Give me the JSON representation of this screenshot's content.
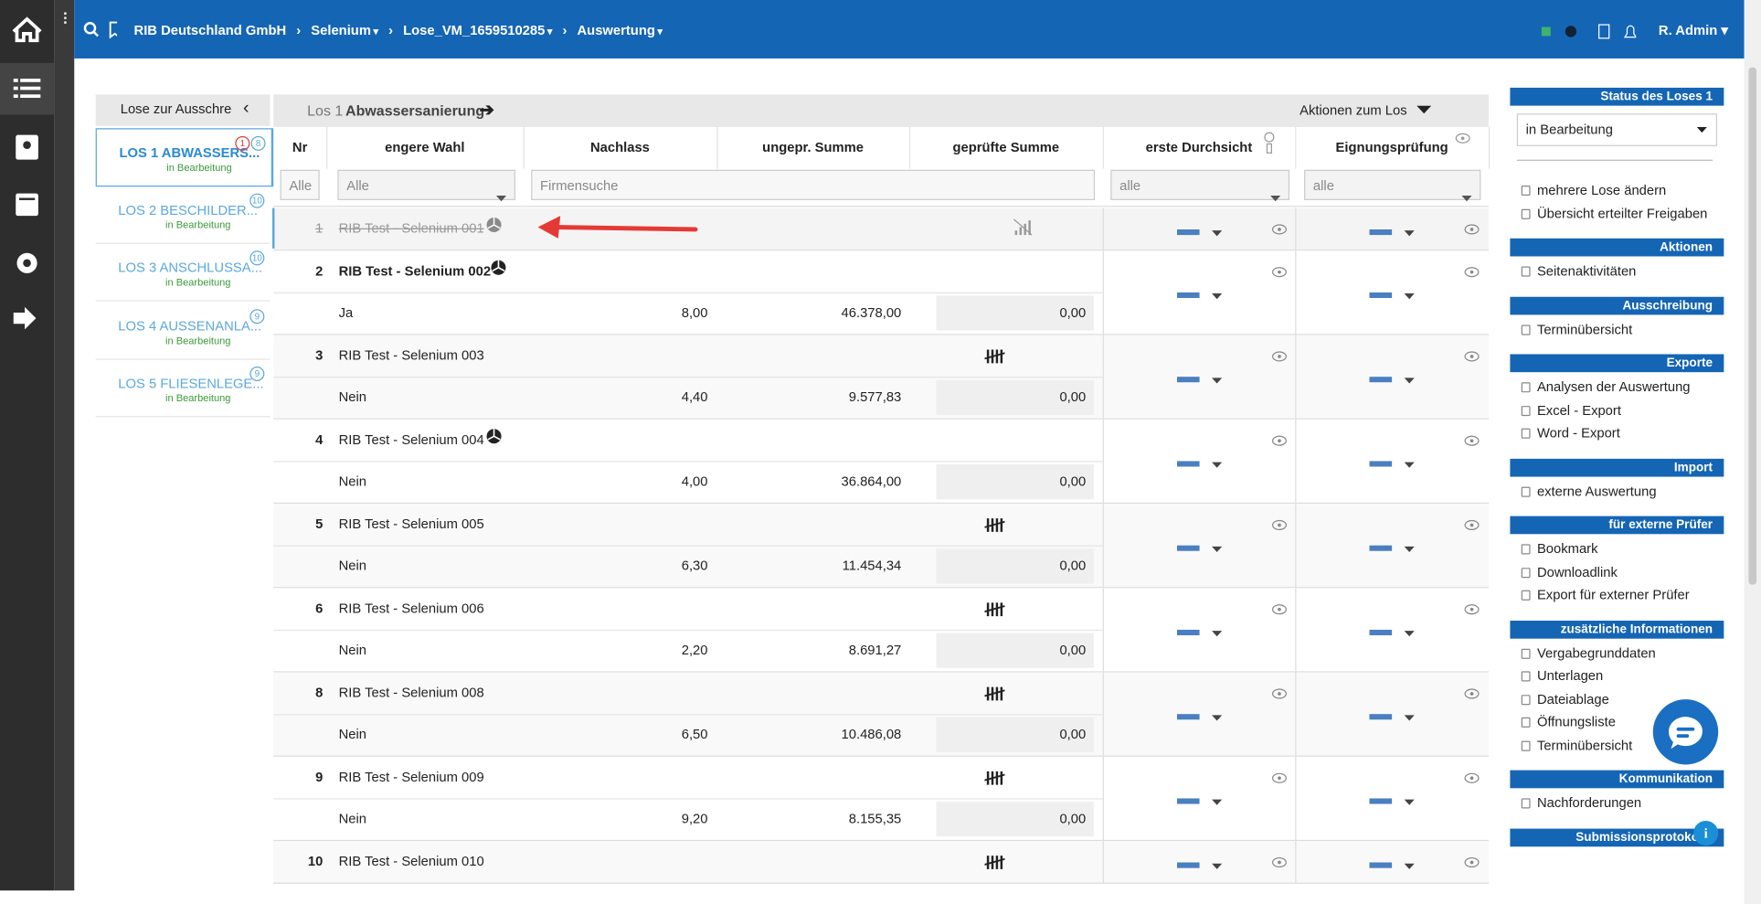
{
  "header": {
    "breadcrumb": [
      "RIB Deutschland GmbH",
      "Selenium",
      "Lose_VM_1659510285",
      "Auswertung"
    ],
    "user": "R. Admin"
  },
  "lots_panel": {
    "title": "Lose zur Ausschre",
    "lots": [
      {
        "name": "LOS 1 ABWASSERS...",
        "status": "in Bearbeitung",
        "badges": [
          "1",
          "8"
        ]
      },
      {
        "name": "LOS 2 BESCHILDER...",
        "status": "in Bearbeitung",
        "badges": [
          "10"
        ]
      },
      {
        "name": "LOS 3 ANSCHLUSSA...",
        "status": "in Bearbeitung",
        "badges": [
          "10"
        ]
      },
      {
        "name": "LOS 4 AUSSENANLA...",
        "status": "in Bearbeitung",
        "badges": [
          "9"
        ]
      },
      {
        "name": "LOS 5 FLIESENLEGE...",
        "status": "in Bearbeitung",
        "badges": [
          "9"
        ]
      }
    ]
  },
  "lot_header": {
    "prefix": "Los 1",
    "name": "Abwassersanierung",
    "actions": "Aktionen zum Los"
  },
  "table": {
    "columns": [
      "Nr",
      "engere Wahl",
      "Nachlass",
      "ungepr. Summe",
      "geprüfte Summe",
      "erste Durchsicht",
      "Eignungsprüfung"
    ],
    "filters": [
      "Alle",
      "Alle",
      "Firmensuche",
      "alle",
      "alle"
    ],
    "rows": [
      {
        "nr": "1",
        "name": "RIB Test - Selenium 001",
        "struck": true,
        "marker": "pie"
      },
      {
        "nr": "2",
        "name": "RIB Test - Selenium 002",
        "bold": true,
        "marker": "pie",
        "choice": "Ja",
        "discount": "8,00",
        "unchecked": "46.378,00",
        "checked": "0,00"
      },
      {
        "nr": "3",
        "name": "RIB Test - Selenium 003",
        "marker": "tally",
        "choice": "Nein",
        "discount": "4,40",
        "unchecked": "9.577,83",
        "checked": "0,00"
      },
      {
        "nr": "4",
        "name": "RIB Test - Selenium 004",
        "marker": "pie",
        "choice": "Nein",
        "discount": "4,00",
        "unchecked": "36.864,00",
        "checked": "0,00"
      },
      {
        "nr": "5",
        "name": "RIB Test - Selenium 005",
        "marker": "tally",
        "choice": "Nein",
        "discount": "6,30",
        "unchecked": "11.454,34",
        "checked": "0,00"
      },
      {
        "nr": "6",
        "name": "RIB Test - Selenium 006",
        "marker": "tally",
        "choice": "Nein",
        "discount": "2,20",
        "unchecked": "8.691,27",
        "checked": "0,00"
      },
      {
        "nr": "8",
        "name": "RIB Test - Selenium 008",
        "marker": "tally",
        "choice": "Nein",
        "discount": "6,50",
        "unchecked": "10.486,08",
        "checked": "0,00"
      },
      {
        "nr": "9",
        "name": "RIB Test - Selenium 009",
        "marker": "tally",
        "choice": "Nein",
        "discount": "9,20",
        "unchecked": "8.155,35",
        "checked": "0,00"
      },
      {
        "nr": "10",
        "name": "RIB Test - Selenium 010",
        "marker": "tally"
      }
    ]
  },
  "side": {
    "status_title": "Status des Loses 1",
    "status": "in Bearbeitung",
    "status_links": [
      "mehrere Lose ändern",
      "Übersicht erteilter Freigaben"
    ],
    "sections": [
      {
        "title": "Aktionen",
        "links": [
          "Seitenaktivitäten"
        ]
      },
      {
        "title": "Ausschreibung",
        "links": [
          "Terminübersicht"
        ]
      },
      {
        "title": "Exporte",
        "links": [
          "Analysen der Auswertung",
          "Excel - Export",
          "Word - Export"
        ]
      },
      {
        "title": "Import",
        "links": [
          "externe Auswertung"
        ]
      },
      {
        "title": "für externe Prüfer",
        "links": [
          "Bookmark",
          "Downloadlink",
          "Export für externer Prüfer"
        ]
      },
      {
        "title": "zusätzliche Informationen",
        "links": [
          "Vergabegrunddaten",
          "Unterlagen",
          "Dateiablage",
          "Öffnungsliste",
          "Terminübersicht"
        ]
      },
      {
        "title": "Kommunikation",
        "links": [
          "Nachforderungen"
        ]
      },
      {
        "title": "Submissionsprotokolle",
        "links": []
      }
    ]
  }
}
